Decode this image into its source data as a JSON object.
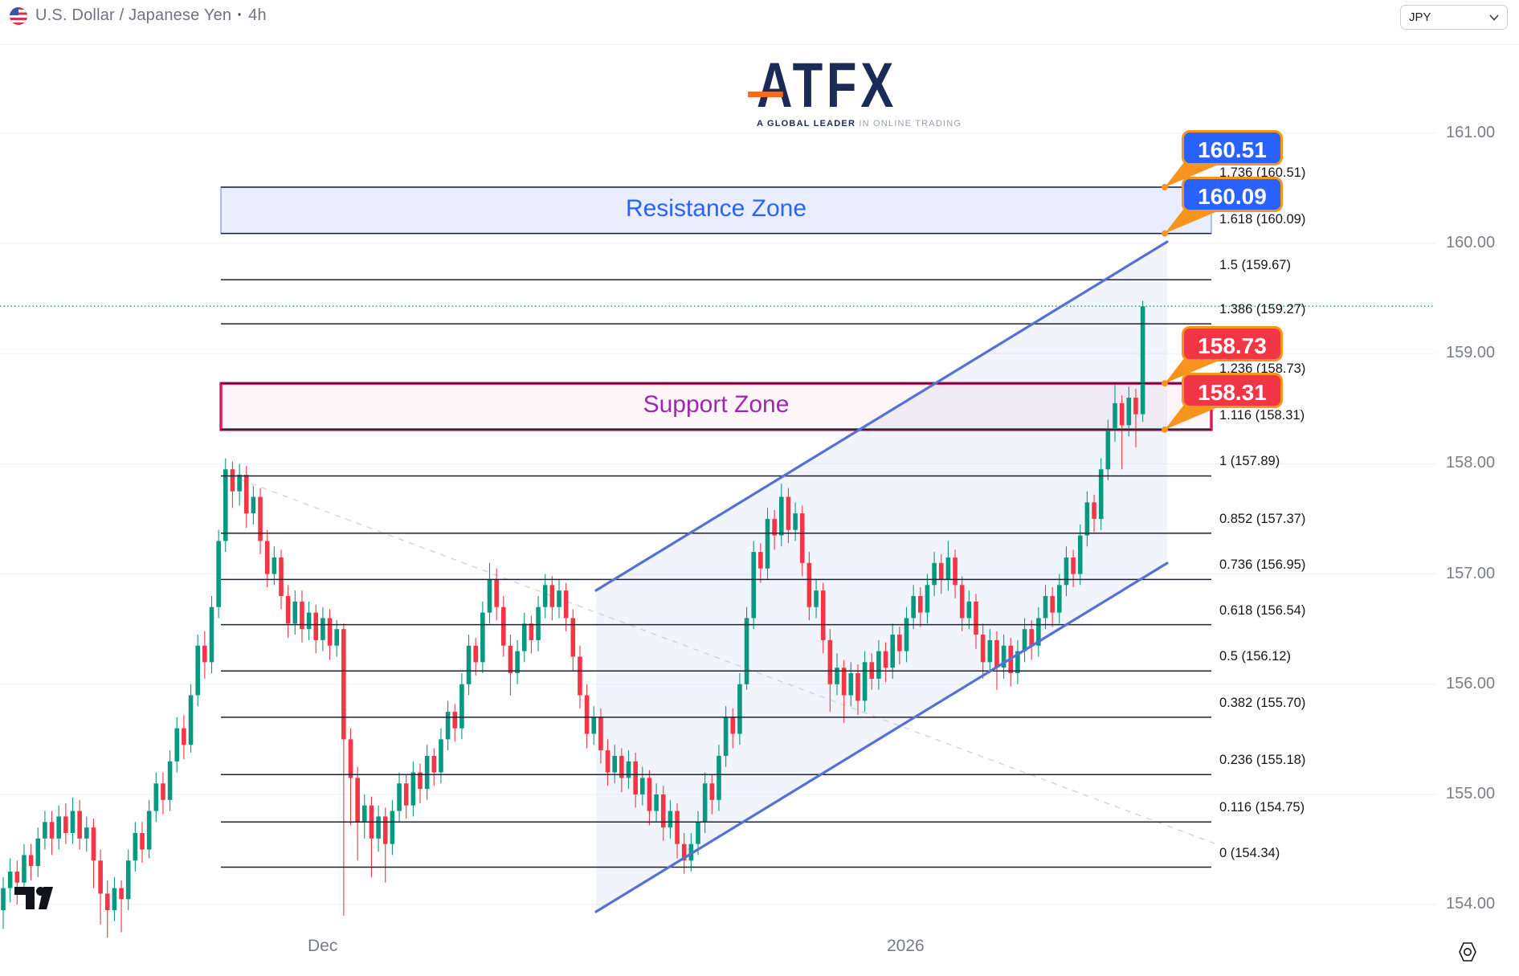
{
  "header": {
    "title_symbol": "U.S. Dollar / Japanese Yen",
    "title_separator": "·",
    "title_interval": "4h"
  },
  "toolbar": {
    "currency_selector": {
      "value": "JPY"
    }
  },
  "logo": {
    "text": "ATFX",
    "tagline_bold": "A GLOBAL LEADER",
    "tagline_rest": " IN ONLINE TRADING",
    "accent_color": "#f26a22",
    "text_color": "#1b2b57"
  },
  "chart_data": {
    "type": "candlestick",
    "symbol": "USD/JPY",
    "interval": "4h",
    "title": "U.S. Dollar / Japanese Yen · 4h",
    "ylim": [
      153.6,
      161.4
    ],
    "grid": true,
    "legend_position": "none",
    "current_price": 159.43,
    "y_axis_labels": [
      "161.00",
      "160.00",
      "159.00",
      "158.00",
      "157.00",
      "156.00",
      "155.00",
      "154.00"
    ],
    "x_axis_labels": [
      "Dec",
      "2026"
    ],
    "colors": {
      "up": "#089981",
      "down": "#f23645",
      "fib_line": "#1d2130",
      "grid_line": "#eef1f6",
      "channel": "#5472d3",
      "channel_fill": "rgba(84,114,211,0.08)",
      "dashed_trend": "#c7cad4",
      "current_price_line": "#089981",
      "badge_border": "#f7941d"
    },
    "fib_levels": [
      {
        "level": 1.736,
        "price": 160.51,
        "label": "1.736 (160.51)"
      },
      {
        "level": 1.618,
        "price": 160.09,
        "label": "1.618 (160.09)"
      },
      {
        "level": 1.5,
        "price": 159.67,
        "label": "1.5 (159.67)"
      },
      {
        "level": 1.386,
        "price": 159.27,
        "label": "1.386 (159.27)"
      },
      {
        "level": 1.236,
        "price": 158.73,
        "label": "1.236 (158.73)"
      },
      {
        "level": 1.116,
        "price": 158.31,
        "label": "1.116 (158.31)"
      },
      {
        "level": 1,
        "price": 157.89,
        "label": "1 (157.89)"
      },
      {
        "level": 0.852,
        "price": 157.37,
        "label": "0.852 (157.37)"
      },
      {
        "level": 0.736,
        "price": 156.95,
        "label": "0.736 (156.95)"
      },
      {
        "level": 0.618,
        "price": 156.54,
        "label": "0.618 (156.54)"
      },
      {
        "level": 0.5,
        "price": 156.12,
        "label": "0.5 (156.12)"
      },
      {
        "level": 0.382,
        "price": 155.7,
        "label": "0.382 (155.70)"
      },
      {
        "level": 0.236,
        "price": 155.18,
        "label": "0.236 (155.18)"
      },
      {
        "level": 0.116,
        "price": 154.75,
        "label": "0.116 (154.75)"
      },
      {
        "level": 0,
        "price": 154.34,
        "label": "0 (154.34)"
      }
    ],
    "zones": [
      {
        "name": "resistance",
        "label": "Resistance Zone",
        "price_top": 160.51,
        "price_bottom": 160.09,
        "fill": "rgba(41,98,255,0.11)",
        "border": "rgba(41,98,255,0.5)",
        "border_width": 1.5,
        "label_color": "#2962ff"
      },
      {
        "name": "support",
        "label": "Support Zone",
        "price_top": 158.73,
        "price_bottom": 158.31,
        "fill": "rgba(216,27,96,0.045)",
        "border": "#d81b60",
        "border_width": 3.5,
        "label_color": "#9c27b0"
      }
    ],
    "badges": [
      {
        "text": "160.51",
        "price": 160.51,
        "bg": "#2962ff"
      },
      {
        "text": "160.09",
        "price": 160.09,
        "bg": "#2962ff"
      },
      {
        "text": "158.73",
        "price": 158.73,
        "bg": "#f23645"
      },
      {
        "text": "158.31",
        "price": 158.31,
        "bg": "#f23645"
      }
    ],
    "channel": {
      "upper": [
        [
          742,
          735
        ],
        [
          1453,
          301
        ]
      ],
      "lower": [
        [
          742,
          1135
        ],
        [
          1453,
          701
        ]
      ]
    },
    "dashed_trend_line": {
      "from": [
        286,
        592
      ],
      "to": [
        1512,
        1050
      ]
    },
    "candles": [
      [
        153.95,
        154.25,
        153.78,
        154.15
      ],
      [
        154.15,
        154.42,
        154.02,
        154.3
      ],
      [
        154.3,
        154.4,
        154.0,
        154.2
      ],
      [
        154.2,
        154.55,
        154.1,
        154.45
      ],
      [
        154.45,
        154.55,
        154.22,
        154.35
      ],
      [
        154.35,
        154.7,
        154.25,
        154.6
      ],
      [
        154.6,
        154.85,
        154.5,
        154.75
      ],
      [
        154.75,
        154.85,
        154.45,
        154.6
      ],
      [
        154.6,
        154.9,
        154.5,
        154.8
      ],
      [
        154.8,
        154.92,
        154.55,
        154.65
      ],
      [
        154.65,
        154.97,
        154.55,
        154.85
      ],
      [
        154.85,
        154.95,
        154.5,
        154.6
      ],
      [
        154.6,
        154.8,
        154.48,
        154.7
      ],
      [
        154.7,
        154.78,
        154.15,
        154.4
      ],
      [
        154.4,
        154.5,
        153.82,
        154.1
      ],
      [
        154.1,
        154.22,
        153.7,
        153.95
      ],
      [
        153.95,
        154.25,
        153.85,
        154.15
      ],
      [
        154.15,
        154.22,
        153.75,
        154.05
      ],
      [
        154.05,
        154.5,
        153.95,
        154.4
      ],
      [
        154.4,
        154.75,
        154.3,
        154.65
      ],
      [
        154.65,
        154.75,
        154.38,
        154.5
      ],
      [
        154.5,
        154.95,
        154.42,
        154.85
      ],
      [
        154.85,
        155.2,
        154.75,
        155.1
      ],
      [
        155.1,
        155.2,
        154.82,
        154.95
      ],
      [
        154.95,
        155.4,
        154.85,
        155.3
      ],
      [
        155.3,
        155.7,
        155.2,
        155.6
      ],
      [
        155.6,
        155.72,
        155.32,
        155.45
      ],
      [
        155.45,
        156.0,
        155.38,
        155.9
      ],
      [
        155.9,
        156.45,
        155.8,
        156.35
      ],
      [
        156.35,
        156.48,
        156.05,
        156.2
      ],
      [
        156.2,
        156.8,
        156.1,
        156.7
      ],
      [
        156.7,
        157.4,
        156.6,
        157.3
      ],
      [
        157.3,
        158.05,
        157.2,
        157.95
      ],
      [
        157.95,
        158.02,
        157.6,
        157.75
      ],
      [
        157.75,
        158.0,
        157.62,
        157.9
      ],
      [
        157.9,
        157.98,
        157.42,
        157.55
      ],
      [
        157.55,
        157.8,
        157.45,
        157.7
      ],
      [
        157.7,
        157.78,
        157.18,
        157.3
      ],
      [
        157.3,
        157.4,
        156.88,
        157.0
      ],
      [
        157.0,
        157.25,
        156.9,
        157.15
      ],
      [
        157.15,
        157.22,
        156.68,
        156.8
      ],
      [
        156.8,
        156.9,
        156.42,
        156.55
      ],
      [
        156.55,
        156.85,
        156.45,
        156.75
      ],
      [
        156.75,
        156.85,
        156.38,
        156.5
      ],
      [
        156.5,
        156.75,
        156.4,
        156.65
      ],
      [
        156.65,
        156.72,
        156.28,
        156.4
      ],
      [
        156.4,
        156.7,
        156.3,
        156.6
      ],
      [
        156.6,
        156.68,
        156.22,
        156.35
      ],
      [
        156.35,
        156.58,
        156.25,
        156.5
      ],
      [
        156.5,
        156.55,
        153.9,
        155.5
      ],
      [
        155.5,
        155.6,
        154.72,
        155.15
      ],
      [
        155.15,
        155.25,
        154.4,
        154.75
      ],
      [
        154.75,
        155.0,
        154.6,
        154.9
      ],
      [
        154.9,
        154.98,
        154.25,
        154.6
      ],
      [
        154.6,
        154.9,
        154.48,
        154.8
      ],
      [
        154.8,
        154.88,
        154.2,
        154.55
      ],
      [
        154.55,
        154.95,
        154.45,
        154.85
      ],
      [
        154.85,
        155.2,
        154.75,
        155.1
      ],
      [
        155.1,
        155.18,
        154.78,
        154.9
      ],
      [
        154.9,
        155.3,
        154.8,
        155.2
      ],
      [
        155.2,
        155.28,
        154.92,
        155.05
      ],
      [
        155.05,
        155.45,
        154.95,
        155.35
      ],
      [
        155.35,
        155.42,
        155.08,
        155.2
      ],
      [
        155.2,
        155.6,
        155.1,
        155.5
      ],
      [
        155.5,
        155.85,
        155.4,
        155.75
      ],
      [
        155.75,
        155.82,
        155.48,
        155.6
      ],
      [
        155.6,
        156.1,
        155.5,
        156.0
      ],
      [
        156.0,
        156.45,
        155.9,
        156.35
      ],
      [
        156.35,
        156.42,
        156.08,
        156.2
      ],
      [
        156.2,
        156.75,
        156.1,
        156.65
      ],
      [
        156.65,
        157.1,
        156.55,
        156.95
      ],
      [
        156.95,
        157.05,
        156.58,
        156.7
      ],
      [
        156.7,
        156.8,
        156.25,
        156.35
      ],
      [
        156.35,
        156.45,
        155.9,
        156.1
      ],
      [
        156.1,
        156.4,
        156.0,
        156.3
      ],
      [
        156.3,
        156.65,
        156.2,
        156.55
      ],
      [
        156.55,
        156.62,
        156.28,
        156.4
      ],
      [
        156.4,
        156.8,
        156.3,
        156.7
      ],
      [
        156.7,
        157.0,
        156.6,
        156.9
      ],
      [
        156.9,
        156.98,
        156.58,
        156.7
      ],
      [
        156.7,
        156.95,
        156.6,
        156.85
      ],
      [
        156.85,
        156.92,
        156.48,
        156.6
      ],
      [
        156.6,
        156.68,
        156.12,
        156.25
      ],
      [
        156.25,
        156.35,
        155.78,
        155.9
      ],
      [
        155.9,
        156.0,
        155.42,
        155.55
      ],
      [
        155.55,
        155.8,
        155.45,
        155.7
      ],
      [
        155.7,
        155.78,
        155.28,
        155.4
      ],
      [
        155.4,
        155.5,
        155.08,
        155.2
      ],
      [
        155.2,
        155.45,
        155.1,
        155.35
      ],
      [
        155.35,
        155.42,
        155.02,
        155.15
      ],
      [
        155.15,
        155.4,
        155.05,
        155.3
      ],
      [
        155.3,
        155.38,
        154.88,
        155.0
      ],
      [
        155.0,
        155.25,
        154.9,
        155.15
      ],
      [
        155.15,
        155.22,
        154.72,
        154.85
      ],
      [
        154.85,
        155.1,
        154.75,
        155.0
      ],
      [
        155.0,
        155.08,
        154.58,
        154.7
      ],
      [
        154.7,
        154.95,
        154.6,
        154.85
      ],
      [
        154.85,
        154.92,
        154.42,
        154.55
      ],
      [
        154.55,
        154.65,
        154.28,
        154.4
      ],
      [
        154.4,
        154.65,
        154.3,
        154.55
      ],
      [
        154.55,
        154.85,
        154.45,
        154.75
      ],
      [
        154.75,
        155.2,
        154.65,
        155.1
      ],
      [
        155.1,
        155.18,
        154.82,
        154.95
      ],
      [
        154.95,
        155.45,
        154.85,
        155.35
      ],
      [
        155.35,
        155.8,
        155.25,
        155.7
      ],
      [
        155.7,
        155.78,
        155.42,
        155.55
      ],
      [
        155.55,
        156.1,
        155.45,
        156.0
      ],
      [
        156.0,
        156.7,
        155.95,
        156.6
      ],
      [
        156.6,
        157.3,
        156.5,
        157.2
      ],
      [
        157.2,
        157.28,
        156.92,
        157.05
      ],
      [
        157.05,
        157.6,
        156.95,
        157.5
      ],
      [
        157.5,
        157.58,
        157.22,
        157.35
      ],
      [
        157.35,
        157.82,
        157.25,
        157.7
      ],
      [
        157.7,
        157.78,
        157.28,
        157.4
      ],
      [
        157.4,
        157.65,
        157.3,
        157.55
      ],
      [
        157.55,
        157.62,
        156.98,
        157.1
      ],
      [
        157.1,
        157.2,
        156.58,
        156.7
      ],
      [
        156.7,
        156.95,
        156.6,
        156.85
      ],
      [
        156.85,
        156.92,
        156.28,
        156.4
      ],
      [
        156.4,
        156.5,
        155.75,
        156.0
      ],
      [
        156.0,
        156.28,
        155.9,
        156.15
      ],
      [
        156.15,
        156.22,
        155.65,
        155.9
      ],
      [
        155.9,
        156.2,
        155.8,
        156.1
      ],
      [
        156.1,
        156.18,
        155.72,
        155.85
      ],
      [
        155.85,
        156.3,
        155.75,
        156.2
      ],
      [
        156.2,
        156.28,
        155.95,
        156.05
      ],
      [
        156.05,
        156.4,
        155.95,
        156.3
      ],
      [
        156.3,
        156.38,
        156.02,
        156.15
      ],
      [
        156.15,
        156.55,
        156.05,
        156.45
      ],
      [
        156.45,
        156.52,
        156.18,
        156.3
      ],
      [
        156.3,
        156.7,
        156.2,
        156.6
      ],
      [
        156.6,
        156.9,
        156.5,
        156.8
      ],
      [
        156.8,
        156.88,
        156.52,
        156.65
      ],
      [
        156.65,
        157.0,
        156.55,
        156.9
      ],
      [
        156.9,
        157.2,
        156.8,
        157.1
      ],
      [
        157.1,
        157.18,
        156.82,
        156.95
      ],
      [
        156.95,
        157.3,
        156.85,
        157.15
      ],
      [
        157.15,
        157.22,
        156.78,
        156.9
      ],
      [
        156.9,
        156.98,
        156.48,
        156.6
      ],
      [
        156.6,
        156.85,
        156.5,
        156.75
      ],
      [
        156.75,
        156.82,
        156.32,
        156.45
      ],
      [
        156.45,
        156.55,
        156.05,
        156.2
      ],
      [
        156.2,
        156.5,
        156.1,
        156.4
      ],
      [
        156.4,
        156.48,
        155.95,
        156.15
      ],
      [
        156.15,
        156.45,
        156.05,
        156.35
      ],
      [
        156.35,
        156.42,
        155.98,
        156.1
      ],
      [
        156.1,
        156.4,
        156.0,
        156.3
      ],
      [
        156.3,
        156.6,
        156.2,
        156.5
      ],
      [
        156.5,
        156.58,
        156.22,
        156.35
      ],
      [
        156.35,
        156.7,
        156.25,
        156.6
      ],
      [
        156.6,
        156.9,
        156.5,
        156.8
      ],
      [
        156.8,
        156.88,
        156.52,
        156.65
      ],
      [
        156.65,
        157.0,
        156.55,
        156.9
      ],
      [
        156.9,
        157.25,
        156.8,
        157.15
      ],
      [
        157.15,
        157.22,
        156.88,
        157.0
      ],
      [
        157.0,
        157.45,
        156.9,
        157.35
      ],
      [
        157.35,
        157.75,
        157.25,
        157.65
      ],
      [
        157.65,
        157.72,
        157.38,
        157.5
      ],
      [
        157.5,
        158.05,
        157.4,
        157.95
      ],
      [
        157.95,
        158.4,
        157.85,
        158.3
      ],
      [
        158.3,
        158.72,
        158.2,
        158.55
      ],
      [
        158.55,
        158.62,
        157.95,
        158.35
      ],
      [
        158.35,
        158.7,
        158.25,
        158.6
      ],
      [
        158.6,
        158.68,
        158.15,
        158.45
      ],
      [
        158.45,
        159.48,
        158.38,
        159.43
      ]
    ]
  }
}
